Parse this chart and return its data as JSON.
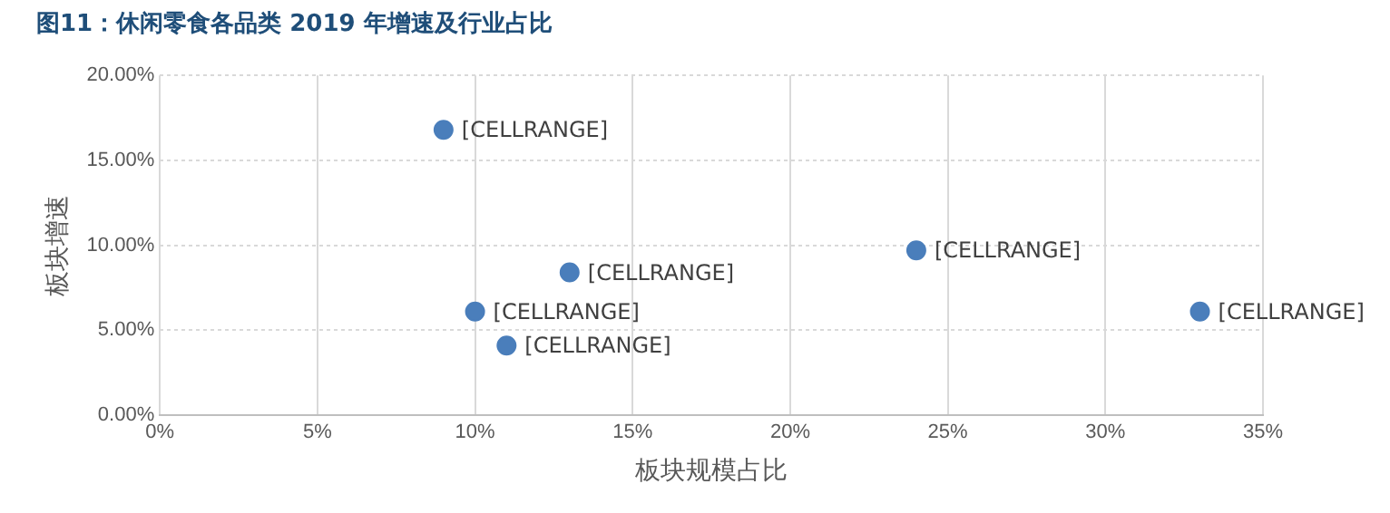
{
  "chart_data": {
    "type": "scatter",
    "title": "图11：休闲零食各品类 2019 年增速及行业占比",
    "xlabel": "板块规模占比",
    "ylabel": "板块增速",
    "x": [
      9,
      13,
      24,
      33,
      10,
      11
    ],
    "series": [
      {
        "color": "#4a7ebb",
        "values": [
          16.8,
          8.4,
          9.7,
          6.1,
          6.1,
          4.1
        ],
        "value_labels": [
          "[CELLRANGE]",
          "[CELLRANGE]",
          "[CELLRANGE]",
          "[CELLRANGE]",
          "[CELLRANGE]",
          "[CELLRANGE]"
        ]
      }
    ],
    "xlim": [
      0,
      35
    ],
    "xticks": [
      {
        "value": 0,
        "label": "0%"
      },
      {
        "value": 5,
        "label": "5%"
      },
      {
        "value": 10,
        "label": "10%"
      },
      {
        "value": 15,
        "label": "15%"
      },
      {
        "value": 20,
        "label": "20%"
      },
      {
        "value": 25,
        "label": "25%"
      },
      {
        "value": 30,
        "label": "30%"
      },
      {
        "value": 35,
        "label": "35%"
      }
    ],
    "ylim": [
      0,
      20
    ],
    "yticks": [
      {
        "value": 0,
        "label": "0.00%"
      },
      {
        "value": 5,
        "label": "5.00%"
      },
      {
        "value": 10,
        "label": "10.00%"
      },
      {
        "value": 15,
        "label": "15.00%"
      },
      {
        "value": 20,
        "label": "20.00%"
      }
    ],
    "grid": true,
    "marker": "circle",
    "legend": false
  }
}
